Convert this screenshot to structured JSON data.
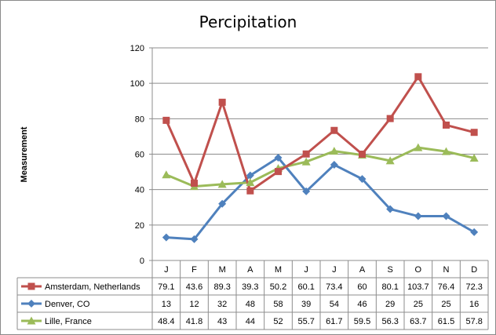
{
  "chart_data": {
    "type": "line",
    "title": "Percipitation",
    "xlabel": "",
    "ylabel": "Measurement",
    "categories": [
      "J",
      "F",
      "M",
      "A",
      "M",
      "J",
      "J",
      "A",
      "S",
      "O",
      "N",
      "D"
    ],
    "ylim": [
      0,
      120
    ],
    "yticks": [
      0,
      20,
      40,
      60,
      80,
      100,
      120
    ],
    "grid": "horizontal",
    "legend": "data-table-left",
    "series": [
      {
        "name": "Amsterdam, Netherlands",
        "color": "#C0504D",
        "marker": "square",
        "values": [
          79.1,
          43.6,
          89.3,
          39.3,
          50.2,
          60.1,
          73.4,
          60,
          80.1,
          103.7,
          76.4,
          72.3
        ],
        "labels": [
          "79.1",
          "43.6",
          "89.3",
          "39.3",
          "50.2",
          "60.1",
          "73.4",
          "60",
          "80.1",
          "103.7",
          "76.4",
          "72.3"
        ]
      },
      {
        "name": "Denver, CO",
        "color": "#4F81BD",
        "marker": "diamond",
        "values": [
          13,
          12,
          32,
          48,
          58,
          39,
          54,
          46,
          29,
          25,
          25,
          16
        ],
        "labels": [
          "13",
          "12",
          "32",
          "48",
          "58",
          "39",
          "54",
          "46",
          "29",
          "25",
          "25",
          "16"
        ]
      },
      {
        "name": "Lille, France",
        "color": "#9BBB59",
        "marker": "triangle",
        "values": [
          48.4,
          41.8,
          43,
          44,
          52,
          55.7,
          61.7,
          59.5,
          56.3,
          63.7,
          61.5,
          57.8
        ],
        "labels": [
          "48.4",
          "41.8",
          "43",
          "44",
          "52",
          "55.7",
          "61.7",
          "59.5",
          "56.3",
          "63.7",
          "61.5",
          "57.8"
        ]
      }
    ]
  }
}
